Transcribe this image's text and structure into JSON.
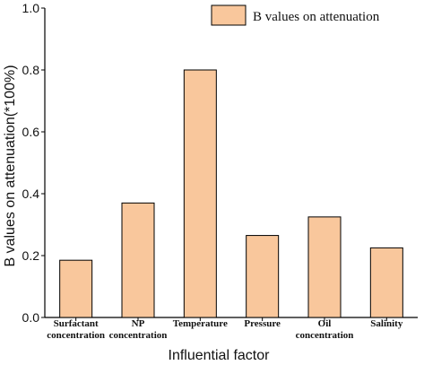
{
  "chart_data": {
    "type": "bar",
    "categories": [
      [
        "Surfactant",
        "concentration"
      ],
      [
        "NP",
        "concentration"
      ],
      [
        "Temperature"
      ],
      [
        "Pressure"
      ],
      [
        "Oil",
        "concentration"
      ],
      [
        "Salinity"
      ]
    ],
    "values": [
      0.185,
      0.37,
      0.8,
      0.265,
      0.325,
      0.225
    ],
    "series_name": "B values on attenuation",
    "xlabel": "Influential factor",
    "ylabel": "B values on attenuation(*100%)",
    "ylim": [
      0.0,
      1.0
    ],
    "yticks": [
      "0.0",
      "0.2",
      "0.4",
      "0.6",
      "0.8",
      "1.0"
    ],
    "grid": false,
    "legend_position": "top-right",
    "colors": {
      "bar_fill": "#F9C79C",
      "bar_stroke": "#000000",
      "axis": "#000000"
    }
  }
}
